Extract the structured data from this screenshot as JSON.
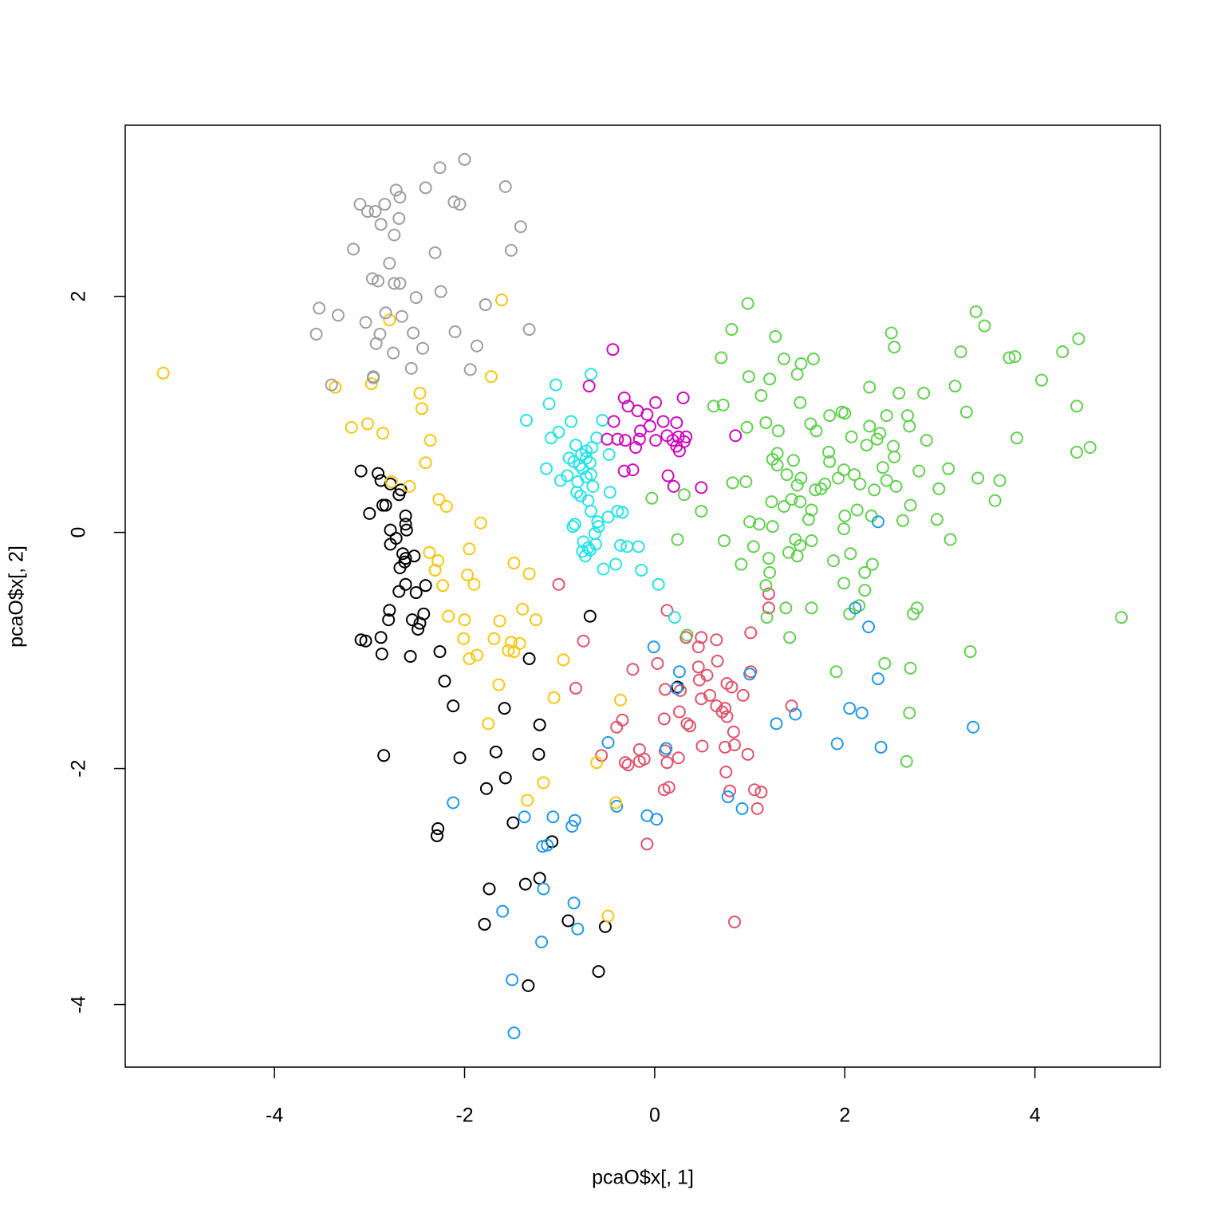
{
  "chart_data": {
    "type": "scatter",
    "xlabel": "pcaO$x[, 1]",
    "ylabel": "pcaO$x[, 2]",
    "xlim": [
      -5.57,
      5.32
    ],
    "ylim": [
      -4.53,
      3.45
    ],
    "xticks": [
      -4,
      -2,
      0,
      2,
      4
    ],
    "yticks": [
      -4,
      -2,
      0,
      2
    ],
    "grid": false,
    "series": [
      {
        "color": "#000000",
        "x": [
          -3.09,
          -2.91,
          -2.88,
          -2.78,
          -2.67,
          -2.69,
          -3.0,
          -2.86,
          -2.62,
          -2.83,
          -2.62,
          -2.61,
          -2.78,
          -2.72,
          -2.78,
          -2.65,
          -2.63,
          -2.68,
          -2.62,
          -2.53,
          -2.69,
          -2.62,
          -2.41,
          -2.51,
          -2.79,
          -2.8,
          -2.43,
          -2.55,
          -2.47,
          -2.49,
          -3.09,
          -3.04,
          -2.88,
          -2.26,
          -2.57,
          -2.87,
          -1.32,
          -0.68,
          -2.21,
          -2.12,
          -1.58,
          -1.21,
          -1.67,
          -2.85,
          -2.05,
          -1.22,
          -1.57,
          -1.77,
          -1.49,
          -2.28,
          -2.29,
          -1.08,
          -1.21,
          -1.36,
          -1.74,
          -0.91,
          -1.79,
          -0.52,
          -0.59,
          -1.33,
          0.24
        ],
        "y": [
          0.52,
          0.5,
          0.44,
          0.41,
          0.36,
          0.32,
          0.16,
          0.23,
          0.14,
          0.23,
          0.07,
          0.02,
          0.02,
          -0.05,
          -0.1,
          -0.18,
          -0.25,
          -0.3,
          -0.22,
          -0.2,
          -0.5,
          -0.44,
          -0.45,
          -0.51,
          -0.66,
          -0.74,
          -0.69,
          -0.74,
          -0.77,
          -0.82,
          -0.91,
          -0.92,
          -0.89,
          -1.01,
          -1.05,
          -1.03,
          -1.07,
          -0.71,
          -1.26,
          -1.47,
          -1.49,
          -1.63,
          -1.86,
          -1.89,
          -1.91,
          -1.88,
          -2.08,
          -2.17,
          -2.46,
          -2.51,
          -2.57,
          -2.62,
          -2.93,
          -2.98,
          -3.02,
          -3.29,
          -3.32,
          -3.34,
          -3.72,
          -3.84,
          -1.31
        ]
      },
      {
        "color": "#DF536B",
        "x": [
          -1.01,
          0.13,
          1.2,
          1.2,
          1.01,
          -0.75,
          0.33,
          0.49,
          0.65,
          0.46,
          0.66,
          0.03,
          0.46,
          -0.23,
          1.01,
          0.55,
          0.47,
          0.11,
          0.27,
          -0.83,
          0.76,
          0.81,
          0.58,
          0.93,
          0.49,
          0.65,
          0.74,
          0.71,
          1.44,
          0.26,
          0.76,
          0.1,
          0.34,
          0.37,
          0.83,
          -0.34,
          -0.4,
          0.74,
          -0.16,
          0.5,
          0.11,
          0.25,
          0.84,
          0.98,
          -0.11,
          -0.16,
          -0.31,
          -0.56,
          -0.28,
          0.13,
          0.75,
          0.15,
          0.1,
          0.79,
          1.05,
          1.12,
          1.08,
          -0.08,
          0.84
        ],
        "y": [
          -0.44,
          -0.66,
          -0.52,
          -0.64,
          -0.85,
          -0.92,
          -0.89,
          -0.89,
          -0.91,
          -0.97,
          -1.09,
          -1.11,
          -1.14,
          -1.16,
          -1.18,
          -1.21,
          -1.25,
          -1.33,
          -1.34,
          -1.32,
          -1.28,
          -1.31,
          -1.38,
          -1.38,
          -1.41,
          -1.47,
          -1.49,
          -1.52,
          -1.47,
          -1.52,
          -1.56,
          -1.58,
          -1.62,
          -1.64,
          -1.69,
          -1.59,
          -1.65,
          -1.82,
          -1.84,
          -1.81,
          -1.85,
          -1.91,
          -1.8,
          -1.88,
          -1.92,
          -1.94,
          -1.95,
          -1.89,
          -1.97,
          -1.95,
          -2.03,
          -2.16,
          -2.18,
          -2.19,
          -2.18,
          -2.2,
          -2.34,
          -2.64,
          -3.3
        ]
      },
      {
        "color": "#61D04F",
        "x": [
          0.98,
          0.81,
          3.38,
          3.47,
          0.7,
          1.27,
          2.49,
          2.52,
          4.46,
          4.29,
          3.22,
          3.73,
          3.79,
          4.07,
          1.54,
          1.36,
          1.67,
          2.83,
          3.16,
          3.28,
          0.72,
          0.62,
          1.12,
          0.99,
          1.21,
          1.5,
          1.53,
          1.97,
          2.26,
          2.57,
          2.44,
          2.66,
          2.26,
          1.7,
          1.83,
          2.07,
          2.23,
          2.34,
          2.37,
          2.51,
          2.68,
          2.86,
          2.52,
          1.64,
          1.84,
          2.0,
          1.17,
          0.97,
          1.3,
          1.29,
          1.24,
          1.46,
          1.84,
          2.1,
          1.99,
          2.4,
          2.44,
          2.16,
          1.79,
          1.69,
          1.54,
          1.5,
          1.29,
          1.39,
          1.44,
          1.23,
          1.36,
          1.53,
          1.65,
          1.75,
          2.31,
          2.54,
          2.99,
          3.09,
          3.4,
          3.63,
          3.58,
          2.69,
          2.61,
          2.97,
          3.11,
          1.99,
          2.28,
          2.13,
          2.0,
          1.93,
          1.62,
          1.48,
          1.65,
          1.24,
          1.1,
          1.0,
          0.96,
          0.82,
          0.49,
          0.31,
          -0.03,
          0.73,
          0.91,
          1.21,
          1.17,
          1.04,
          1.2,
          1.41,
          1.5,
          1.88,
          1.99,
          2.06,
          2.21,
          2.29,
          2.21,
          2.05,
          2.15,
          2.76,
          2.72,
          2.69,
          2.42,
          2.68,
          2.65,
          3.32,
          1.91,
          1.42,
          1.18,
          1.38,
          1.65,
          0.34,
          0.24,
          4.91,
          3.81,
          4.58,
          4.44,
          4.44,
          2.78,
          1.53
        ],
        "y": [
          1.94,
          1.72,
          1.87,
          1.75,
          1.48,
          1.66,
          1.69,
          1.57,
          1.64,
          1.53,
          1.53,
          1.48,
          1.49,
          1.29,
          1.43,
          1.47,
          1.47,
          1.18,
          1.24,
          1.02,
          1.08,
          1.07,
          1.16,
          1.32,
          1.3,
          1.34,
          1.1,
          1.02,
          1.23,
          1.18,
          0.99,
          0.99,
          0.9,
          0.86,
          0.68,
          0.81,
          0.74,
          0.79,
          0.84,
          0.73,
          0.9,
          0.78,
          0.64,
          0.92,
          0.99,
          1.01,
          0.93,
          0.89,
          0.86,
          0.67,
          0.62,
          0.61,
          0.6,
          0.49,
          0.53,
          0.55,
          0.44,
          0.41,
          0.41,
          0.36,
          0.46,
          0.4,
          0.57,
          0.49,
          0.28,
          0.26,
          0.22,
          0.26,
          0.19,
          0.37,
          0.36,
          0.39,
          0.37,
          0.54,
          0.46,
          0.44,
          0.27,
          0.23,
          0.1,
          0.11,
          -0.06,
          0.03,
          0.14,
          0.19,
          0.14,
          0.46,
          0.11,
          -0.06,
          -0.07,
          0.05,
          0.07,
          0.09,
          0.43,
          0.42,
          0.18,
          0.32,
          0.29,
          -0.07,
          -0.27,
          -0.34,
          -0.45,
          -0.12,
          -0.22,
          -0.17,
          -0.2,
          -0.24,
          -0.43,
          -0.18,
          -0.34,
          -0.27,
          -0.49,
          -0.69,
          -0.62,
          -0.64,
          -0.69,
          -1.15,
          -1.11,
          -1.53,
          -1.94,
          -1.01,
          -1.18,
          -0.89,
          -0.72,
          -0.64,
          -0.64,
          -0.87,
          -0.06,
          -0.72,
          0.8,
          0.72,
          0.68,
          1.07,
          0.52,
          -0.11
        ]
      },
      {
        "color": "#2297E6",
        "x": [
          2.35,
          2.25,
          2.11,
          -0.01,
          0.26,
          1.0,
          0.23,
          2.35,
          2.05,
          2.18,
          1.48,
          1.28,
          3.35,
          -0.49,
          0.12,
          1.92,
          2.38,
          0.77,
          -0.4,
          -2.12,
          -0.08,
          0.02,
          -1.07,
          -0.84,
          -0.87,
          -1.37,
          -1.13,
          -1.18,
          0.92,
          -1.17,
          -0.85,
          -1.6,
          -0.81,
          -1.19,
          -1.5,
          -1.48
        ],
        "y": [
          0.09,
          -0.8,
          -0.64,
          -0.97,
          -1.18,
          -1.2,
          -1.32,
          -1.24,
          -1.49,
          -1.53,
          -1.54,
          -1.62,
          -1.65,
          -1.78,
          -1.83,
          -1.79,
          -1.82,
          -2.24,
          -2.32,
          -2.29,
          -2.4,
          -2.43,
          -2.41,
          -2.44,
          -2.49,
          -2.41,
          -2.65,
          -2.66,
          -2.34,
          -3.02,
          -3.14,
          -3.21,
          -3.36,
          -3.47,
          -3.79,
          -4.24
        ]
      },
      {
        "color": "#28E2E5",
        "x": [
          -0.67,
          -1.04,
          -1.11,
          -1.35,
          -0.55,
          -0.88,
          -1.01,
          -1.09,
          -0.61,
          -0.83,
          -0.66,
          -0.72,
          -0.77,
          -0.9,
          -0.48,
          -0.72,
          -0.85,
          -0.79,
          -0.68,
          -0.76,
          -1.14,
          -0.92,
          -0.99,
          -0.72,
          -0.67,
          -0.81,
          -0.65,
          -0.82,
          -0.47,
          -0.78,
          -0.7,
          -0.39,
          -0.34,
          -0.67,
          -0.49,
          -0.86,
          -0.84,
          -0.6,
          -0.59,
          -0.63,
          -0.75,
          -0.7,
          -0.76,
          -0.62,
          -0.36,
          -0.29,
          -0.17,
          -0.68,
          -0.73,
          -0.54,
          -0.41,
          -0.14,
          0.04,
          0.21
        ],
        "y": [
          1.34,
          1.25,
          1.09,
          0.95,
          0.95,
          0.94,
          0.85,
          0.8,
          0.8,
          0.74,
          0.72,
          0.69,
          0.66,
          0.63,
          0.66,
          0.63,
          0.6,
          0.57,
          0.59,
          0.54,
          0.54,
          0.48,
          0.44,
          0.47,
          0.49,
          0.43,
          0.39,
          0.34,
          0.34,
          0.31,
          0.27,
          0.18,
          0.17,
          0.18,
          0.13,
          0.05,
          0.07,
          0.09,
          0.05,
          -0.01,
          -0.08,
          -0.13,
          -0.16,
          -0.1,
          -0.11,
          -0.12,
          -0.12,
          -0.15,
          -0.2,
          -0.31,
          -0.27,
          -0.32,
          -0.44,
          -0.72
        ]
      },
      {
        "color": "#CD0BBC",
        "x": [
          -0.44,
          -0.69,
          -0.32,
          0.01,
          -0.28,
          0.3,
          -0.18,
          -0.08,
          -0.43,
          0.09,
          0.23,
          -0.05,
          -0.15,
          -0.39,
          -0.31,
          -0.5,
          -0.16,
          0.01,
          0.13,
          0.25,
          0.33,
          0.19,
          0.31,
          0.23,
          0.26,
          -0.2,
          0.85,
          -0.32,
          -0.23,
          0.14,
          0.2,
          0.49
        ],
        "y": [
          1.55,
          1.24,
          1.14,
          1.1,
          1.07,
          1.14,
          1.03,
          1.0,
          0.94,
          0.94,
          0.93,
          0.9,
          0.86,
          0.79,
          0.78,
          0.79,
          0.79,
          0.78,
          0.82,
          0.81,
          0.81,
          0.78,
          0.77,
          0.73,
          0.69,
          0.72,
          0.82,
          0.52,
          0.53,
          0.48,
          0.39,
          0.38
        ]
      },
      {
        "color": "#F5C710",
        "x": [
          -5.17,
          -1.61,
          -2.79,
          -1.72,
          -3.36,
          -2.98,
          -2.47,
          -2.45,
          -3.19,
          -3.02,
          -2.86,
          -2.36,
          -2.41,
          -2.77,
          -2.58,
          -2.27,
          -2.19,
          -1.83,
          -1.95,
          -2.37,
          -2.28,
          -2.31,
          -1.48,
          -2.23,
          -1.97,
          -1.9,
          -1.32,
          -2.17,
          -2.0,
          -1.63,
          -1.39,
          -1.25,
          -2.01,
          -1.69,
          -1.87,
          -1.95,
          -1.51,
          -1.42,
          -1.54,
          -1.48,
          -0.96,
          -1.64,
          -1.06,
          -1.75,
          -0.36,
          -0.61,
          -1.17,
          -1.34,
          -0.41,
          -0.49
        ],
        "y": [
          1.35,
          1.97,
          1.8,
          1.32,
          1.23,
          1.26,
          1.18,
          1.05,
          0.89,
          0.92,
          0.84,
          0.78,
          0.59,
          0.43,
          0.39,
          0.28,
          0.22,
          0.08,
          -0.14,
          -0.17,
          -0.24,
          -0.32,
          -0.26,
          -0.45,
          -0.36,
          -0.44,
          -0.35,
          -0.71,
          -0.74,
          -0.75,
          -0.65,
          -0.74,
          -0.9,
          -0.9,
          -1.04,
          -1.07,
          -0.93,
          -0.94,
          -1.0,
          -1.01,
          -1.08,
          -1.29,
          -1.4,
          -1.62,
          -1.42,
          -1.95,
          -2.12,
          -2.27,
          -2.29,
          -3.25
        ]
      },
      {
        "color": "#9E9E9E",
        "x": [
          -2.0,
          -2.26,
          -1.57,
          -2.41,
          -2.72,
          -2.11,
          -2.05,
          -3.1,
          -2.84,
          -2.68,
          -3.02,
          -2.94,
          -2.69,
          -2.88,
          -1.41,
          -2.74,
          -3.17,
          -1.51,
          -2.31,
          -2.79,
          -2.97,
          -2.91,
          -2.68,
          -2.74,
          -2.25,
          -2.51,
          -1.78,
          -3.53,
          -3.33,
          -3.04,
          -2.83,
          -2.66,
          -1.32,
          -2.1,
          -3.56,
          -2.54,
          -2.89,
          -2.93,
          -1.87,
          -2.44,
          -2.75,
          -2.56,
          -1.94,
          -2.96,
          -2.96,
          -3.4
        ],
        "y": [
          3.16,
          3.09,
          2.93,
          2.92,
          2.9,
          2.8,
          2.78,
          2.78,
          2.78,
          2.84,
          2.72,
          2.72,
          2.66,
          2.61,
          2.59,
          2.52,
          2.4,
          2.39,
          2.37,
          2.28,
          2.15,
          2.13,
          2.11,
          2.11,
          2.04,
          1.99,
          1.93,
          1.9,
          1.84,
          1.78,
          1.86,
          1.83,
          1.72,
          1.7,
          1.68,
          1.69,
          1.68,
          1.6,
          1.58,
          1.56,
          1.52,
          1.39,
          1.38,
          1.32,
          1.31,
          1.25
        ]
      }
    ]
  }
}
